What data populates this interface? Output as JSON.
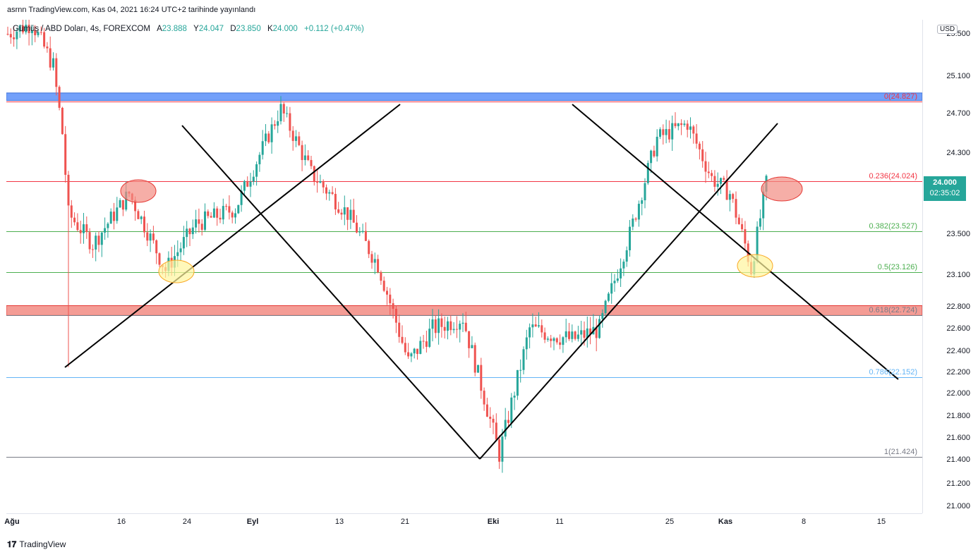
{
  "header": {
    "published": "asrnn TradingView.com, Kas 04, 2021 16:24 UTC+2 tarihinde yayınlandı"
  },
  "legend": {
    "symbol": "Gümüş / ABD Doları, 4s, FOREXCOM",
    "open_label": "A",
    "open": "23.888",
    "high_label": "Y",
    "high": "24.047",
    "low_label": "D",
    "low": "23.850",
    "close_label": "K",
    "close": "24.000",
    "change": "+0.112 (+0.47%)"
  },
  "currency_badge": "USD",
  "price_tag": {
    "price": "24.000",
    "countdown": "02:35:02"
  },
  "colors": {
    "up": "#26a69a",
    "down": "#ef5350",
    "blue_zone": "#5b8ff9",
    "red_zone": "#f28b82",
    "fib_red": "#f23645",
    "fib_green": "#4caf50",
    "fib_blue": "#64b5f6",
    "fib_grey": "#787b86"
  },
  "footer": {
    "brand": "TradingView",
    "brand_icon": "tradingview-logo-icon"
  },
  "chart_data": {
    "type": "candlestick",
    "y_axis": {
      "ticks": [
        "25.500",
        "25.100",
        "24.700",
        "24.300",
        "24.000",
        "23.500",
        "23.100",
        "22.800",
        "22.600",
        "22.400",
        "22.200",
        "22.000",
        "21.800",
        "21.600",
        "21.400",
        "21.200",
        "21.000"
      ],
      "tick_values": [
        25.5,
        25.1,
        24.7,
        24.3,
        24.0,
        23.5,
        23.1,
        22.8,
        22.6,
        22.4,
        22.2,
        22.0,
        21.8,
        21.6,
        21.4,
        21.2,
        21.0
      ]
    },
    "x_axis": {
      "ticks": [
        "Ağu",
        "16",
        "24",
        "Eyl",
        "13",
        "21",
        "Eki",
        "11",
        "25",
        "Kas",
        "8",
        "15"
      ],
      "bold": [
        "Ağu",
        "Eyl",
        "Eki",
        "Kas"
      ]
    },
    "fib_levels": [
      {
        "label": "0(24.827)",
        "price": 24.827,
        "color": "#f23645"
      },
      {
        "label": "0.236(24.024)",
        "price": 24.024,
        "color": "#f23645"
      },
      {
        "label": "0.382(23.527)",
        "price": 23.527,
        "color": "#4caf50"
      },
      {
        "label": "0.5(23.126)",
        "price": 23.126,
        "color": "#4caf50"
      },
      {
        "label": "0.618(22.724)",
        "price": 22.724,
        "color": "#787b86"
      },
      {
        "label": "0.786(22.152)",
        "price": 22.152,
        "color": "#64b5f6"
      },
      {
        "label": "1(21.424)",
        "price": 21.424,
        "color": "#787b86"
      }
    ],
    "zones": [
      {
        "name": "resistance",
        "from": 24.84,
        "to": 24.92,
        "color": "#5b8ff9"
      },
      {
        "name": "support",
        "from": 22.72,
        "to": 22.81,
        "color": "#f28b82"
      }
    ],
    "path_anchors": [
      {
        "i": 0,
        "price": 25.5
      },
      {
        "i": 8,
        "price": 25.6
      },
      {
        "i": 15,
        "price": 25.2
      },
      {
        "i": 18,
        "price": 24.5
      },
      {
        "i": 20,
        "price": 23.7
      },
      {
        "i": 28,
        "price": 23.4
      },
      {
        "i": 40,
        "price": 23.9
      },
      {
        "i": 52,
        "price": 23.15
      },
      {
        "i": 62,
        "price": 23.6
      },
      {
        "i": 75,
        "price": 23.75
      },
      {
        "i": 90,
        "price": 24.75
      },
      {
        "i": 100,
        "price": 24.1
      },
      {
        "i": 112,
        "price": 23.7
      },
      {
        "i": 122,
        "price": 23.2
      },
      {
        "i": 132,
        "price": 22.3
      },
      {
        "i": 140,
        "price": 22.6
      },
      {
        "i": 150,
        "price": 22.7
      },
      {
        "i": 162,
        "price": 21.45
      },
      {
        "i": 172,
        "price": 22.6
      },
      {
        "i": 186,
        "price": 22.5
      },
      {
        "i": 195,
        "price": 22.6
      },
      {
        "i": 205,
        "price": 23.5
      },
      {
        "i": 214,
        "price": 24.45
      },
      {
        "i": 224,
        "price": 24.6
      },
      {
        "i": 232,
        "price": 24.05
      },
      {
        "i": 238,
        "price": 23.9
      },
      {
        "i": 243,
        "price": 23.4
      },
      {
        "i": 245,
        "price": 23.15
      },
      {
        "i": 250,
        "price": 24.0
      }
    ]
  }
}
